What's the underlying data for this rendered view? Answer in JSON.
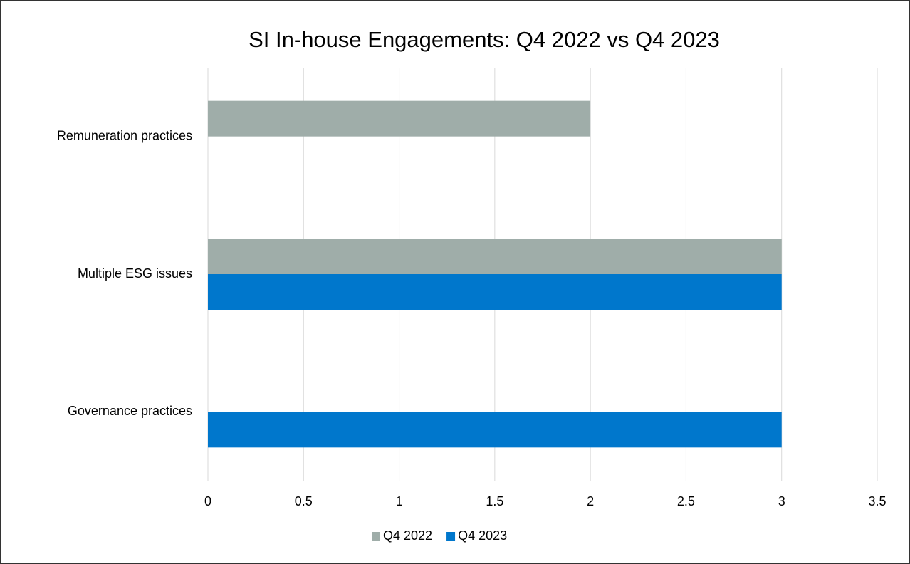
{
  "chart_data": {
    "type": "bar",
    "orientation": "horizontal",
    "title": "SI In-house Engagements: Q4 2022 vs Q4 2023",
    "categories": [
      "Remuneration practices",
      "Multiple ESG issues",
      "Governance practices"
    ],
    "series": [
      {
        "name": "Q4 2022",
        "color": "#9fada9",
        "values": [
          2,
          3,
          null
        ]
      },
      {
        "name": "Q4 2023",
        "color": "#0077cc",
        "values": [
          null,
          3,
          3
        ]
      }
    ],
    "xlim": [
      0,
      3.5
    ],
    "xticks": [
      0,
      0.5,
      1,
      1.5,
      2,
      2.5,
      3,
      3.5
    ],
    "grid": true,
    "legend": "bottom"
  }
}
